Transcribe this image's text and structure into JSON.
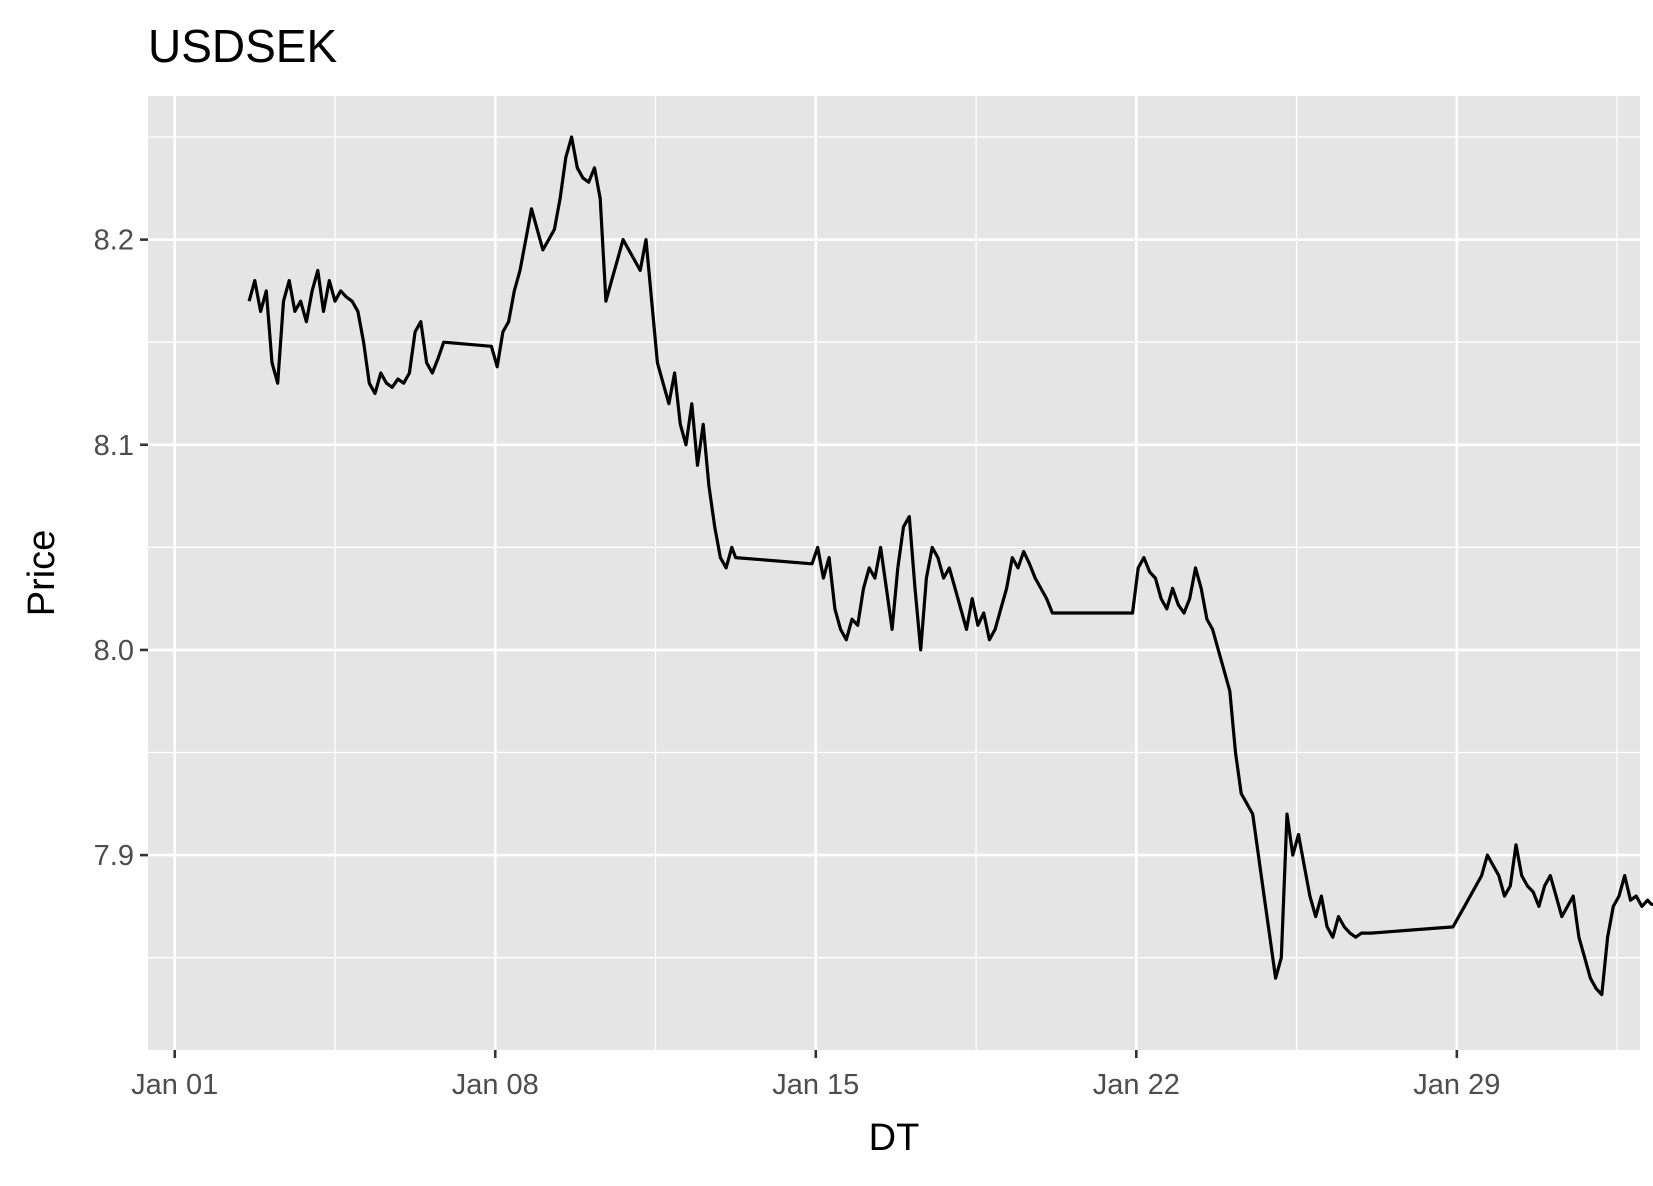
{
  "chart_data": {
    "type": "line",
    "title": "USDSEK",
    "xlabel": "DT",
    "ylabel": "Price",
    "x_type": "date",
    "x_tick_labels": [
      "Jan 01",
      "Jan 08",
      "Jan 15",
      "Jan 22",
      "Jan 29"
    ],
    "x_tick_values": [
      "2018-01-01",
      "2018-01-08",
      "2018-01-15",
      "2018-01-22",
      "2018-01-29"
    ],
    "xlim": [
      "2017-12-31T10:00",
      "2018-02-02T00:00"
    ],
    "y_tick_labels": [
      "7.9",
      "8.0",
      "8.1",
      "8.2"
    ],
    "y_tick_values": [
      7.9,
      8.0,
      8.1,
      8.2
    ],
    "ylim": [
      7.805,
      8.27
    ],
    "grid": true,
    "background": "#e5e5e5",
    "line_color": "#000000",
    "series": [
      {
        "x": [
          "2018-01-02T15:00",
          "2018-01-02T18:00",
          "2018-01-02T21:00",
          "2018-01-03T00:00",
          "2018-01-03T03:00",
          "2018-01-03T06:00",
          "2018-01-03T09:00",
          "2018-01-03T12:00",
          "2018-01-03T15:00",
          "2018-01-03T18:00",
          "2018-01-03T21:00",
          "2018-01-04T00:00",
          "2018-01-04T03:00",
          "2018-01-04T06:00",
          "2018-01-04T09:00",
          "2018-01-04T12:00",
          "2018-01-04T15:00",
          "2018-01-04T18:00",
          "2018-01-04T21:00",
          "2018-01-05T00:00",
          "2018-01-05T03:00",
          "2018-01-05T06:00",
          "2018-01-05T09:00",
          "2018-01-05T12:00",
          "2018-01-05T15:00",
          "2018-01-05T18:00",
          "2018-01-05T21:00",
          "2018-01-06T00:00",
          "2018-01-06T03:00",
          "2018-01-06T06:00",
          "2018-01-06T09:00",
          "2018-01-06T12:00",
          "2018-01-06T15:00",
          "2018-01-06T18:00",
          "2018-01-06T21:00",
          "2018-01-07T22:00",
          "2018-01-08T01:00",
          "2018-01-08T04:00",
          "2018-01-08T07:00",
          "2018-01-08T10:00",
          "2018-01-08T13:00",
          "2018-01-08T16:00",
          "2018-01-08T19:00",
          "2018-01-08T22:00",
          "2018-01-09T01:00",
          "2018-01-09T04:00",
          "2018-01-09T07:00",
          "2018-01-09T10:00",
          "2018-01-09T13:00",
          "2018-01-09T16:00",
          "2018-01-09T19:00",
          "2018-01-09T22:00",
          "2018-01-10T01:00",
          "2018-01-10T04:00",
          "2018-01-10T07:00",
          "2018-01-10T10:00",
          "2018-01-10T13:00",
          "2018-01-10T16:00",
          "2018-01-10T19:00",
          "2018-01-10T22:00",
          "2018-01-11T01:00",
          "2018-01-11T04:00",
          "2018-01-11T07:00",
          "2018-01-11T10:00",
          "2018-01-11T13:00",
          "2018-01-11T16:00",
          "2018-01-11T19:00",
          "2018-01-11T22:00",
          "2018-01-12T01:00",
          "2018-01-12T04:00",
          "2018-01-12T07:00",
          "2018-01-12T10:00",
          "2018-01-12T13:00",
          "2018-01-12T16:00",
          "2018-01-12T19:00",
          "2018-01-12T22:00",
          "2018-01-13T01:00",
          "2018-01-13T04:00",
          "2018-01-13T06:00",
          "2018-01-14T22:00",
          "2018-01-15T01:00",
          "2018-01-15T04:00",
          "2018-01-15T07:00",
          "2018-01-15T10:00",
          "2018-01-15T13:00",
          "2018-01-15T16:00",
          "2018-01-15T19:00",
          "2018-01-15T22:00",
          "2018-01-16T01:00",
          "2018-01-16T04:00",
          "2018-01-16T07:00",
          "2018-01-16T10:00",
          "2018-01-16T13:00",
          "2018-01-16T16:00",
          "2018-01-16T19:00",
          "2018-01-16T22:00",
          "2018-01-17T01:00",
          "2018-01-17T04:00",
          "2018-01-17T07:00",
          "2018-01-17T10:00",
          "2018-01-17T13:00",
          "2018-01-17T16:00",
          "2018-01-17T19:00",
          "2018-01-17T22:00",
          "2018-01-18T01:00",
          "2018-01-18T04:00",
          "2018-01-18T07:00",
          "2018-01-18T10:00",
          "2018-01-18T13:00",
          "2018-01-18T16:00",
          "2018-01-18T19:00",
          "2018-01-18T22:00",
          "2018-01-19T01:00",
          "2018-01-19T04:00",
          "2018-01-19T07:00",
          "2018-01-19T10:00",
          "2018-01-19T13:00",
          "2018-01-19T16:00",
          "2018-01-19T19:00",
          "2018-01-19T22:00",
          "2018-01-20T01:00",
          "2018-01-20T04:00",
          "2018-01-21T22:00",
          "2018-01-22T01:00",
          "2018-01-22T04:00",
          "2018-01-22T07:00",
          "2018-01-22T10:00",
          "2018-01-22T13:00",
          "2018-01-22T16:00",
          "2018-01-22T19:00",
          "2018-01-22T22:00",
          "2018-01-23T01:00",
          "2018-01-23T04:00",
          "2018-01-23T07:00",
          "2018-01-23T10:00",
          "2018-01-23T13:00",
          "2018-01-23T16:00",
          "2018-01-23T19:00",
          "2018-01-23T22:00",
          "2018-01-24T01:00",
          "2018-01-24T04:00",
          "2018-01-24T07:00",
          "2018-01-24T10:00",
          "2018-01-24T13:00",
          "2018-01-24T16:00",
          "2018-01-24T19:00",
          "2018-01-24T22:00",
          "2018-01-25T01:00",
          "2018-01-25T04:00",
          "2018-01-25T07:00",
          "2018-01-25T10:00",
          "2018-01-25T13:00",
          "2018-01-25T16:00",
          "2018-01-25T19:00",
          "2018-01-25T22:00",
          "2018-01-26T01:00",
          "2018-01-26T04:00",
          "2018-01-26T07:00",
          "2018-01-26T10:00",
          "2018-01-26T13:00",
          "2018-01-26T16:00",
          "2018-01-26T19:00",
          "2018-01-26T22:00",
          "2018-01-27T01:00",
          "2018-01-27T03:00",
          "2018-01-28T22:00",
          "2018-01-29T01:00",
          "2018-01-29T04:00",
          "2018-01-29T07:00",
          "2018-01-29T10:00",
          "2018-01-29T13:00",
          "2018-01-29T16:00",
          "2018-01-29T19:00",
          "2018-01-29T22:00",
          "2018-01-30T01:00",
          "2018-01-30T04:00",
          "2018-01-30T07:00",
          "2018-01-30T10:00",
          "2018-01-30T13:00",
          "2018-01-30T16:00",
          "2018-01-30T19:00",
          "2018-01-30T22:00",
          "2018-01-31T01:00",
          "2018-01-31T04:00",
          "2018-01-31T07:00",
          "2018-01-31T10:00",
          "2018-01-31T13:00",
          "2018-01-31T16:00",
          "2018-01-31T19:00",
          "2018-01-31T22:00",
          "2018-02-01T01:00",
          "2018-02-01T04:00",
          "2018-02-01T07:00",
          "2018-02-01T10:00",
          "2018-02-01T13:00",
          "2018-02-01T16:00",
          "2018-02-01T19:00",
          "2018-02-01T22:00",
          "2018-02-02T01:00",
          "2018-02-02T04:00",
          "2018-02-02T06:00",
          "2018-02-02T08:00"
        ],
        "y": [
          8.17,
          8.18,
          8.165,
          8.175,
          8.14,
          8.13,
          8.17,
          8.18,
          8.165,
          8.17,
          8.16,
          8.175,
          8.185,
          8.165,
          8.18,
          8.17,
          8.175,
          8.172,
          8.17,
          8.165,
          8.15,
          8.13,
          8.125,
          8.135,
          8.13,
          8.128,
          8.132,
          8.13,
          8.135,
          8.155,
          8.16,
          8.14,
          8.135,
          8.142,
          8.15,
          8.148,
          8.138,
          8.155,
          8.16,
          8.175,
          8.185,
          8.2,
          8.215,
          8.205,
          8.195,
          8.2,
          8.205,
          8.22,
          8.24,
          8.25,
          8.235,
          8.23,
          8.228,
          8.235,
          8.22,
          8.17,
          8.18,
          8.19,
          8.2,
          8.195,
          8.19,
          8.185,
          8.2,
          8.17,
          8.14,
          8.13,
          8.12,
          8.135,
          8.11,
          8.1,
          8.12,
          8.09,
          8.11,
          8.08,
          8.06,
          8.045,
          8.04,
          8.05,
          8.045,
          8.042,
          8.05,
          8.035,
          8.045,
          8.02,
          8.01,
          8.005,
          8.015,
          8.012,
          8.03,
          8.04,
          8.035,
          8.05,
          8.03,
          8.01,
          8.04,
          8.06,
          8.065,
          8.03,
          8.0,
          8.035,
          8.05,
          8.045,
          8.035,
          8.04,
          8.03,
          8.02,
          8.01,
          8.025,
          8.012,
          8.018,
          8.005,
          8.01,
          8.02,
          8.03,
          8.045,
          8.04,
          8.048,
          8.042,
          8.035,
          8.03,
          8.025,
          8.018,
          8.018,
          8.04,
          8.045,
          8.038,
          8.035,
          8.025,
          8.02,
          8.03,
          8.022,
          8.018,
          8.025,
          8.04,
          8.03,
          8.015,
          8.01,
          8.0,
          7.99,
          7.98,
          7.95,
          7.93,
          7.925,
          7.92,
          7.9,
          7.88,
          7.86,
          7.84,
          7.85,
          7.92,
          7.9,
          7.91,
          7.895,
          7.88,
          7.87,
          7.88,
          7.865,
          7.86,
          7.87,
          7.865,
          7.862,
          7.86,
          7.862,
          7.862,
          7.862,
          7.865,
          7.87,
          7.875,
          7.88,
          7.885,
          7.89,
          7.9,
          7.895,
          7.89,
          7.88,
          7.885,
          7.905,
          7.89,
          7.885,
          7.882,
          7.875,
          7.885,
          7.89,
          7.88,
          7.87,
          7.875,
          7.88,
          7.86,
          7.85,
          7.84,
          7.835,
          7.832,
          7.86,
          7.875,
          7.88,
          7.89,
          7.878,
          7.88,
          7.875,
          7.878,
          7.876,
          7.876
        ]
      }
    ]
  }
}
